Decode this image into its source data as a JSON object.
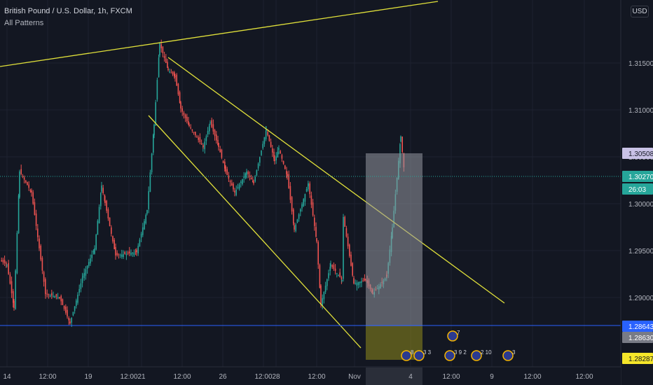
{
  "chart_title": "British Pound / U.S. Dollar, 1h, FXCM",
  "indicator_label": "All Patterns",
  "currency_button": "USD",
  "price_axis": {
    "ticks": [
      "1.31500",
      "1.31000",
      "1.30500",
      "1.30000",
      "1.29500",
      "1.29000"
    ],
    "markers": [
      {
        "key": "target",
        "label": "1.30508",
        "bg": "#c9c2e6",
        "fg": "#131722"
      },
      {
        "key": "last",
        "label": "1.30270",
        "bg": "#26a69a",
        "fg": "#ffffff"
      },
      {
        "key": "countdown",
        "label": "26:03",
        "bg": "#26a69a",
        "fg": "#ffffff"
      },
      {
        "key": "hline",
        "label": "1.28643",
        "bg": "#2962ff",
        "fg": "#ffffff"
      },
      {
        "key": "entry",
        "label": "1.28630",
        "bg": "#787b86",
        "fg": "#ffffff"
      },
      {
        "key": "stop",
        "label": "1.28287",
        "bg": "#f5e62a",
        "fg": "#131722"
      }
    ]
  },
  "time_axis": {
    "labels": [
      "14",
      "12:00",
      "19",
      "12:00",
      "21",
      "12:00",
      "26",
      "12:00",
      "28",
      "12:00",
      "Nov",
      "4",
      "12:00",
      "9",
      "12:00",
      "12:00"
    ]
  },
  "events": [
    {
      "icon": "us-flag-icon",
      "count": "8"
    },
    {
      "icon": "uk-flag-icon",
      "count": "3 3"
    },
    {
      "icon": "uk-flag-icon",
      "count": "7"
    },
    {
      "icon": "us-flag-icon",
      "count": "3 9 2"
    },
    {
      "icon": "us-flag-icon",
      "count": "2 10"
    },
    {
      "icon": "us-flag-icon",
      "count": "3"
    }
  ],
  "colors": {
    "background": "#131722",
    "up": "#26a69a",
    "down": "#ef5350",
    "trendline": "#e0e03a",
    "hline": "#2962ff",
    "grid": "#1e2230"
  }
}
